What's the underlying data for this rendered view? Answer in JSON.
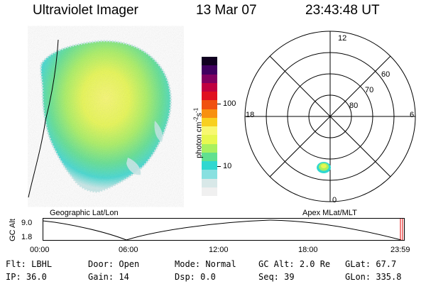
{
  "header": {
    "instrument": "Ultraviolet Imager",
    "date": "13 Mar 07",
    "time": "23:43:48 UT"
  },
  "colorbar": {
    "label": "photon cm-2s-1",
    "ticks": [
      "100",
      "10"
    ],
    "colors": [
      "#f0f0f0",
      "#d8e8e8",
      "#88e0e0",
      "#30d8d0",
      "#60e090",
      "#a8f060",
      "#e8f850",
      "#f8f870",
      "#f8d020",
      "#f89010",
      "#f05010",
      "#e01020",
      "#c00040",
      "#800060",
      "#400060",
      "#100020"
    ]
  },
  "polar": {
    "mlt_labels": [
      "12",
      "18",
      "6",
      "0"
    ],
    "lat_labels": [
      "60",
      "70",
      "80"
    ]
  },
  "timeline": {
    "left_label": "Geographic Lat/Lon",
    "right_label": "Apex MLat/MLT",
    "axis_title": "GC Alt",
    "y_ticks": [
      "9.0",
      "1.8"
    ],
    "x_ticks": [
      "00:00",
      "06:00",
      "12:00",
      "18:00",
      "23:59"
    ]
  },
  "status": {
    "flt_label": "Flt:",
    "flt_value": "LBHL",
    "ip_label": "IP:",
    "ip_value": "36.0",
    "door_label": "Door:",
    "door_value": "Open",
    "gain_label": "Gain:",
    "gain_value": "14",
    "mode_label": "Mode:",
    "mode_value": "Normal",
    "dsp_label": "Dsp:",
    "dsp_value": "0.0",
    "gcalt_label": "GC Alt:",
    "gcalt_value": "2.0 Re",
    "seq_label": "Seq:",
    "seq_value": "39",
    "glat_label": "GLat:",
    "glat_value": "67.7",
    "glon_label": "GLon:",
    "glon_value": "335.8"
  }
}
